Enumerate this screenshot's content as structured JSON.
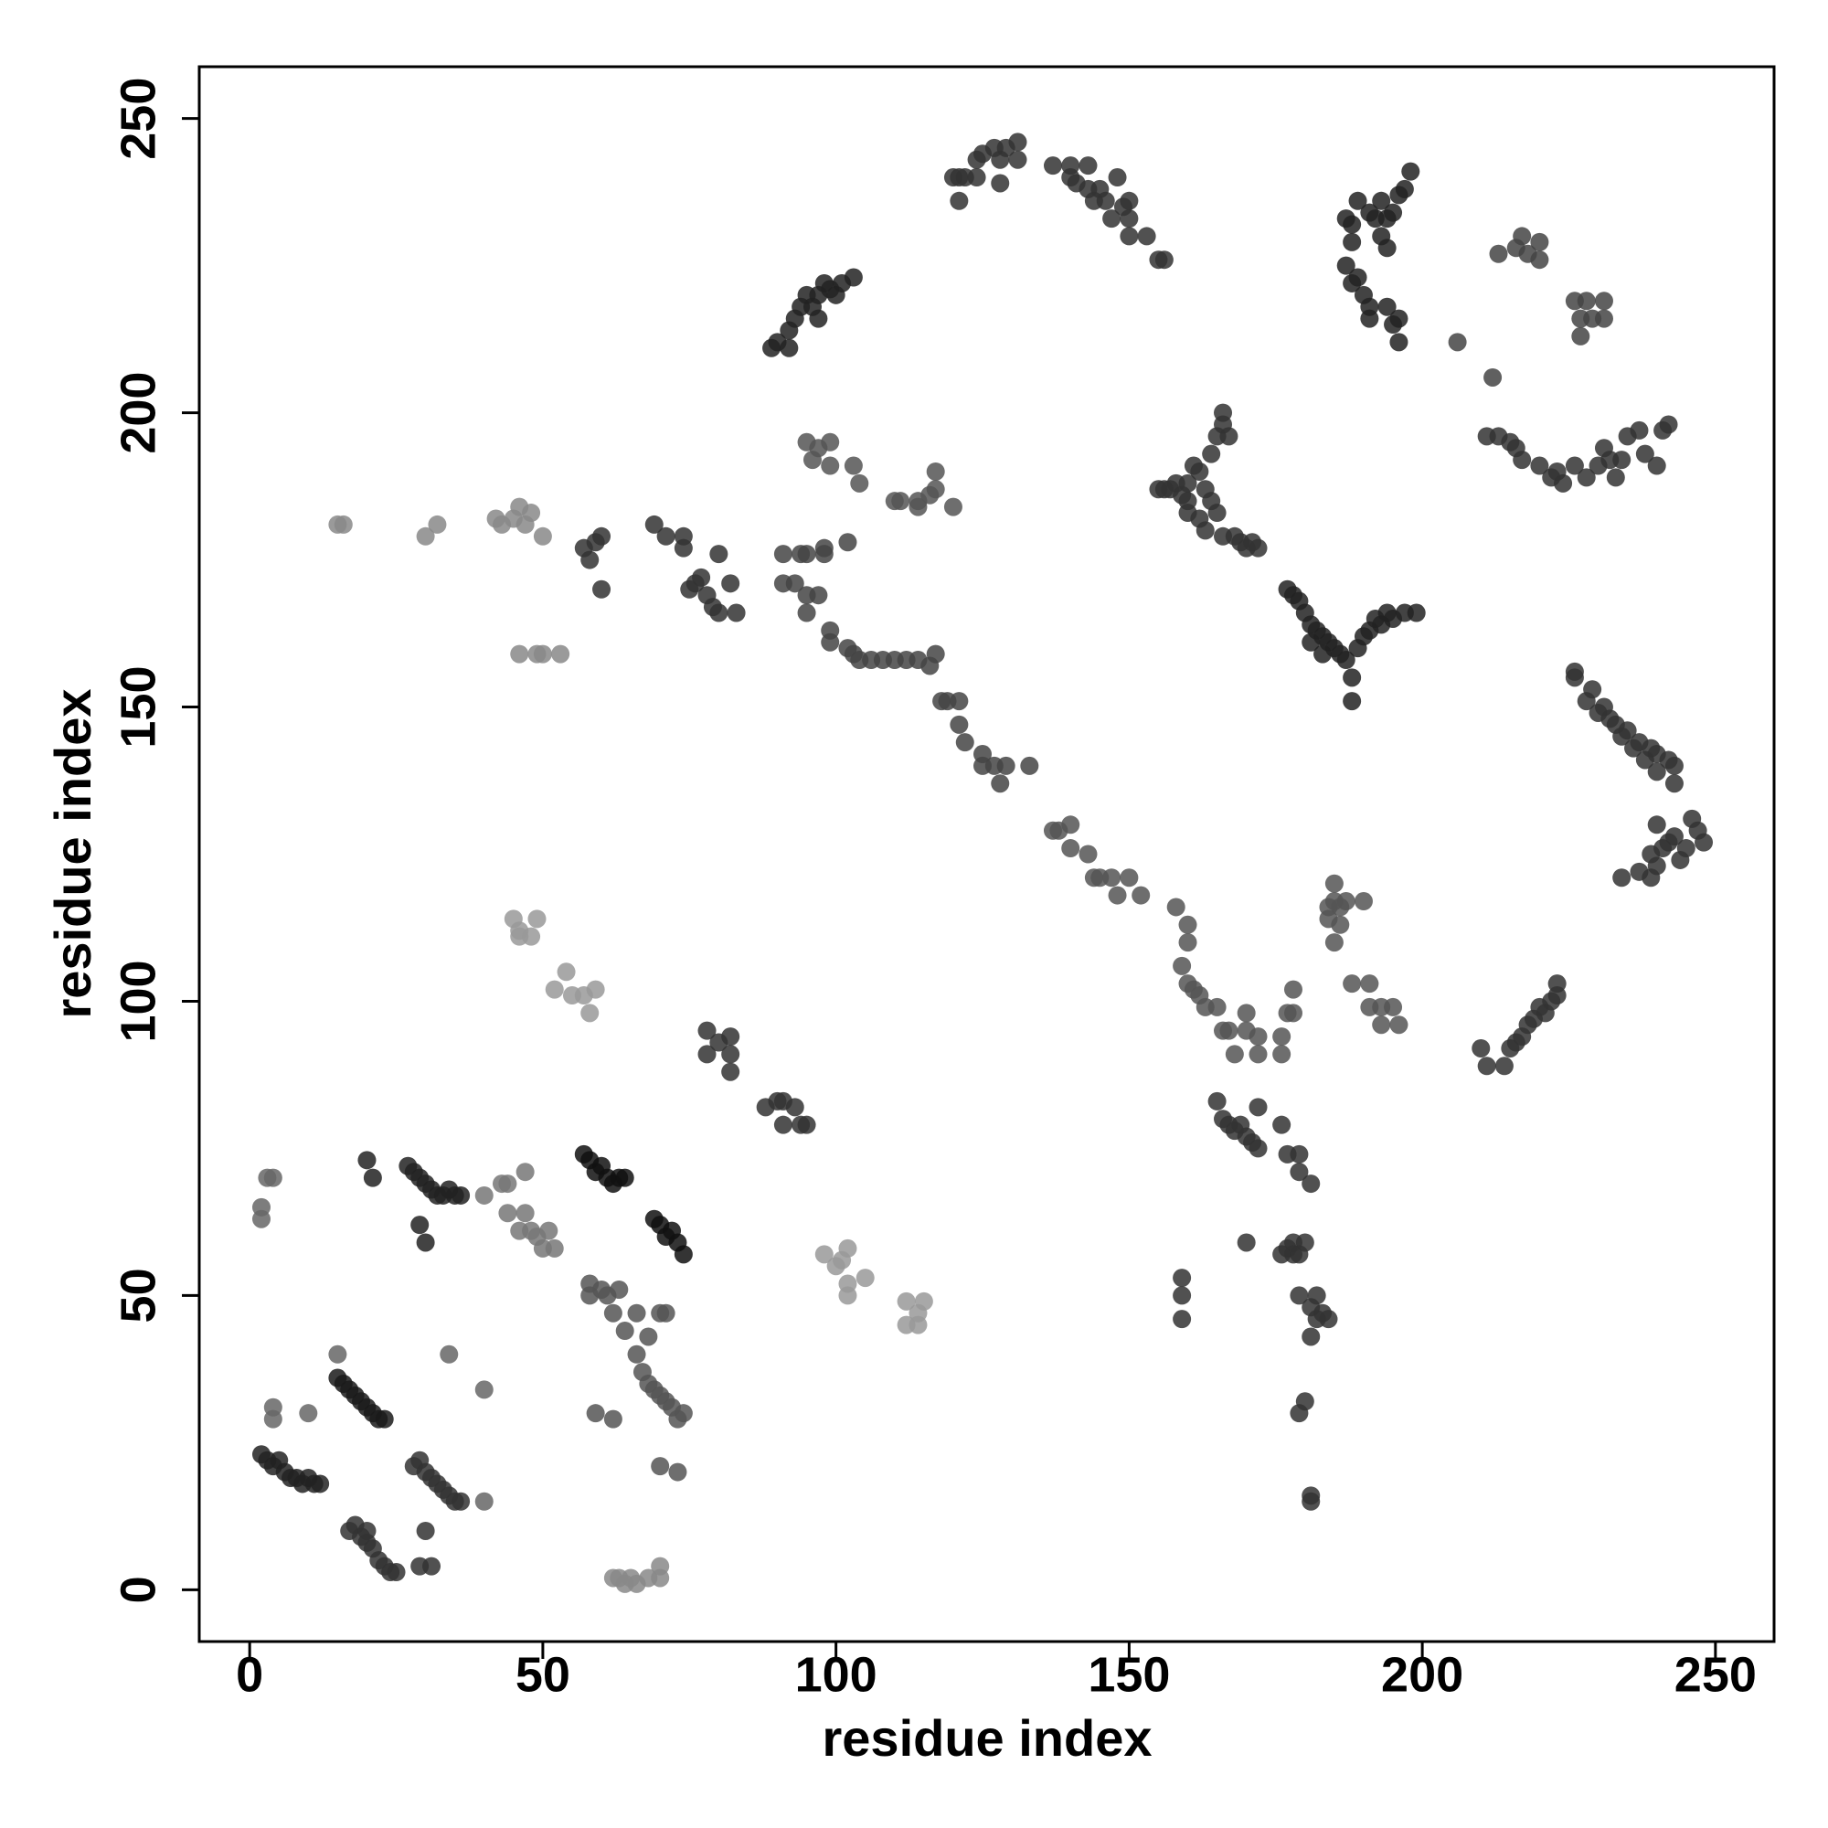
{
  "chart_data": {
    "type": "scatter",
    "xlabel": "residue index",
    "ylabel": "residue index",
    "xlim": [
      -8.6,
      260
    ],
    "ylim": [
      -8.8,
      258.8
    ],
    "xticks": [
      0,
      50,
      100,
      150,
      200,
      250
    ],
    "yticks": [
      0,
      50,
      100,
      150,
      200,
      250
    ],
    "series": [
      {
        "color": "#222222",
        "x": [
          2,
          3,
          4,
          5,
          6,
          7,
          8,
          9,
          10,
          11,
          12
        ],
        "values": [
          23,
          22,
          21,
          22,
          20,
          19,
          19,
          18,
          19,
          18,
          18
        ]
      },
      {
        "color": "#666666",
        "x": [
          2,
          2,
          3,
          4,
          4,
          4,
          10,
          15,
          34,
          40,
          40
        ],
        "values": [
          63,
          65,
          70,
          70,
          31,
          29,
          30,
          40,
          40,
          34,
          15
        ]
      },
      {
        "color": "#1a1a1a",
        "x": [
          15,
          16,
          17,
          18,
          19,
          20,
          21,
          22,
          23
        ],
        "values": [
          36,
          35,
          34,
          33,
          32,
          31,
          30,
          29,
          29
        ]
      },
      {
        "color": "#333333",
        "x": [
          17,
          18,
          19,
          20,
          21,
          22,
          23,
          24,
          25,
          20
        ],
        "values": [
          10,
          11,
          9,
          8,
          7,
          5,
          4,
          3,
          3,
          10
        ]
      },
      {
        "color": "#222222",
        "x": [
          20,
          21,
          27,
          28,
          29,
          30,
          31,
          32,
          33,
          34,
          35,
          36,
          29,
          30
        ],
        "values": [
          73,
          70,
          72,
          71,
          70,
          69,
          68,
          67,
          67,
          68,
          67,
          67,
          62,
          59
        ]
      },
      {
        "color": "#333333",
        "x": [
          28,
          29,
          30,
          31,
          32,
          33,
          34,
          35,
          36,
          30,
          29,
          31
        ],
        "values": [
          21,
          22,
          20,
          19,
          18,
          17,
          16,
          15,
          15,
          10,
          4,
          4
        ]
      },
      {
        "color": "#777777",
        "x": [
          40,
          43,
          44,
          44,
          46,
          47,
          48,
          49,
          50,
          51,
          52,
          47
        ],
        "values": [
          67,
          69,
          69,
          64,
          61,
          64,
          61,
          60,
          58,
          61,
          58,
          71
        ]
      },
      {
        "color": "#111111",
        "x": [
          57,
          58,
          59,
          60,
          61,
          62,
          63,
          64
        ],
        "values": [
          74,
          73,
          71,
          72,
          70,
          69,
          70,
          70
        ]
      },
      {
        "color": "#555555",
        "x": [
          58,
          58,
          60,
          61,
          62,
          63,
          64,
          66,
          66,
          67,
          68,
          69,
          70,
          71,
          72,
          73,
          74,
          68,
          70,
          71,
          59,
          62,
          70,
          73
        ],
        "values": [
          52,
          50,
          51,
          50,
          47,
          51,
          44,
          47,
          40,
          37,
          35,
          34,
          33,
          32,
          31,
          29,
          30,
          43,
          47,
          47,
          30,
          29,
          21,
          20
        ]
      },
      {
        "color": "#111111",
        "x": [
          69,
          70,
          71,
          72,
          73,
          74
        ],
        "values": [
          63,
          62,
          60,
          61,
          59,
          57
        ]
      },
      {
        "color": "#888888",
        "x": [
          62,
          63,
          64,
          65,
          66,
          68,
          70,
          70
        ],
        "values": [
          2,
          2,
          1,
          2,
          1,
          2,
          2,
          4
        ]
      },
      {
        "color": "#333333",
        "x": [
          78,
          78,
          80,
          82,
          82,
          82,
          88,
          90,
          91,
          91,
          93,
          94,
          95
        ],
        "values": [
          95,
          91,
          93,
          94,
          91,
          88,
          82,
          83,
          83,
          79,
          82,
          79,
          79
        ]
      },
      {
        "color": "#999999",
        "x": [
          98,
          100,
          101,
          102,
          102,
          102,
          105,
          112,
          112,
          114,
          114,
          115
        ],
        "values": [
          57,
          55,
          56,
          58,
          52,
          50,
          53,
          49,
          45,
          45,
          47,
          49
        ]
      },
      {
        "color": "#999999",
        "x": [
          45,
          46,
          46,
          48,
          49,
          52,
          54,
          55,
          57,
          58,
          59
        ],
        "values": [
          114,
          112,
          111,
          111,
          114,
          102,
          105,
          101,
          101,
          98,
          102
        ]
      },
      {
        "color": "#888888",
        "x": [
          15,
          16,
          30,
          32,
          42,
          43,
          45,
          46,
          47,
          48,
          50,
          46,
          49,
          50,
          53
        ],
        "values": [
          181,
          181,
          179,
          181,
          182,
          181,
          182,
          184,
          181,
          183,
          179,
          159,
          159,
          159,
          159
        ]
      },
      {
        "color": "#333333",
        "x": [
          57,
          58,
          59,
          60,
          60,
          69,
          71,
          74,
          74,
          75,
          76,
          77,
          78,
          79,
          80,
          80,
          82,
          83
        ],
        "values": [
          177,
          175,
          178,
          179,
          170,
          181,
          179,
          179,
          177,
          170,
          171,
          172,
          169,
          167,
          166,
          176,
          171,
          166
        ]
      },
      {
        "color": "#444444",
        "x": [
          91,
          91,
          93,
          94,
          95,
          95,
          95,
          97,
          98,
          98,
          99,
          99,
          102,
          102,
          103,
          104,
          106,
          108,
          110,
          112,
          114,
          116,
          117
        ],
        "values": [
          176,
          171,
          171,
          176,
          176,
          166,
          169,
          169,
          177,
          176,
          163,
          161,
          160,
          178,
          159,
          158,
          158,
          158,
          158,
          158,
          158,
          157,
          159
        ]
      },
      {
        "color": "#555555",
        "x": [
          95,
          96,
          97,
          99,
          99,
          103,
          104,
          110,
          111,
          114,
          114,
          116,
          117,
          117,
          120
        ],
        "values": [
          195,
          192,
          194,
          195,
          191,
          191,
          188,
          185,
          185,
          185,
          184,
          186,
          187,
          190,
          184
        ]
      },
      {
        "color": "#222222",
        "x": [
          89,
          90,
          92,
          93,
          94,
          95,
          96,
          97,
          98,
          99,
          100,
          101,
          103,
          92,
          97
        ],
        "values": [
          211,
          212,
          214,
          216,
          218,
          220,
          218,
          220,
          222,
          221,
          220,
          222,
          223,
          211,
          216
        ]
      },
      {
        "color": "#444444",
        "x": [
          118,
          119,
          121,
          121,
          122,
          125,
          125,
          127,
          128,
          129,
          133
        ],
        "values": [
          151,
          151,
          151,
          147,
          144,
          142,
          140,
          140,
          137,
          140,
          140
        ]
      },
      {
        "color": "#333333",
        "x": [
          120,
          121,
          121,
          122,
          124,
          124,
          125,
          127,
          128,
          128,
          129,
          131,
          131,
          137,
          140,
          140,
          141,
          143,
          143,
          144,
          145,
          146,
          147,
          148,
          149,
          150,
          150,
          150,
          153,
          155,
          156
        ],
        "values": [
          240,
          240,
          236,
          240,
          240,
          243,
          244,
          245,
          243,
          239,
          245,
          246,
          243,
          242,
          240,
          242,
          239,
          242,
          238,
          236,
          238,
          236,
          233,
          240,
          235,
          233,
          230,
          236,
          230,
          226,
          226
        ]
      },
      {
        "color": "#555555",
        "x": [
          137,
          138,
          140,
          140,
          143,
          144,
          145,
          147,
          148,
          150,
          152
        ],
        "values": [
          129,
          129,
          130,
          126,
          125,
          121,
          121,
          121,
          118,
          121,
          118
        ]
      },
      {
        "color": "#333333",
        "x": [
          155,
          156,
          157,
          158,
          159,
          160,
          160,
          161,
          162,
          163,
          164,
          165,
          166,
          166,
          167,
          160,
          162,
          163,
          164,
          165,
          166,
          168,
          169,
          170,
          171,
          172
        ],
        "values": [
          187,
          187,
          187,
          188,
          186,
          185,
          188,
          191,
          190,
          187,
          193,
          196,
          198,
          200,
          196,
          183,
          182,
          180,
          185,
          183,
          179,
          179,
          178,
          177,
          178,
          177
        ]
      },
      {
        "color": "#555555",
        "x": [
          158,
          160,
          160,
          159,
          160,
          161,
          162,
          163,
          165,
          166,
          167,
          168,
          170,
          170,
          172,
          172,
          176,
          177,
          178,
          176,
          178
        ],
        "values": [
          116,
          113,
          110,
          106,
          103,
          102,
          101,
          99,
          99,
          95,
          95,
          91,
          98,
          95,
          94,
          91,
          94,
          98,
          98,
          91,
          102
        ]
      },
      {
        "color": "#333333",
        "x": [
          165,
          166,
          167,
          168,
          169,
          170,
          171,
          172,
          172,
          176,
          177,
          179,
          179,
          181,
          170,
          176,
          177,
          178,
          178,
          179,
          180,
          179,
          181,
          182,
          181,
          183,
          184,
          182,
          180,
          179,
          181,
          181,
          159,
          159,
          159
        ],
        "values": [
          83,
          80,
          79,
          78,
          79,
          77,
          76,
          75,
          82,
          79,
          74,
          74,
          71,
          69,
          59,
          57,
          58,
          57,
          59,
          57,
          59,
          50,
          48,
          46,
          43,
          47,
          46,
          50,
          32,
          30,
          16,
          15,
          53,
          50,
          46
        ]
      },
      {
        "color": "#222222",
        "x": [
          177,
          178,
          179,
          180,
          181,
          182,
          183,
          184,
          185,
          186,
          187,
          188,
          188,
          189,
          190,
          191,
          192,
          193,
          194,
          195,
          197,
          199,
          181,
          183
        ],
        "values": [
          170,
          169,
          168,
          166,
          164,
          163,
          162,
          161,
          160,
          159,
          158,
          155,
          151,
          160,
          162,
          163,
          165,
          164,
          166,
          165,
          166,
          166,
          161,
          159
        ]
      },
      {
        "color": "#555555",
        "x": [
          184,
          185,
          186,
          187,
          186,
          185,
          190,
          188,
          191,
          191,
          193,
          195,
          196,
          193,
          184,
          185
        ],
        "values": [
          116,
          117,
          116,
          117,
          113,
          110,
          117,
          103,
          103,
          99,
          99,
          99,
          96,
          96,
          114,
          120
        ]
      },
      {
        "color": "#222222",
        "x": [
          187,
          188,
          188,
          189,
          191,
          192,
          193,
          194,
          195,
          196,
          197,
          198,
          193,
          194,
          187,
          188,
          189,
          190,
          191,
          191,
          194,
          195,
          196,
          196
        ],
        "values": [
          233,
          232,
          229,
          236,
          234,
          233,
          236,
          233,
          234,
          237,
          238,
          241,
          230,
          228,
          225,
          222,
          223,
          220,
          216,
          218,
          218,
          215,
          212,
          216
        ]
      },
      {
        "color": "#444444",
        "x": [
          206,
          212,
          213,
          216,
          217,
          218,
          220,
          220,
          226,
          227,
          228,
          229,
          231,
          231,
          227
        ],
        "values": [
          212,
          206,
          227,
          228,
          230,
          227,
          229,
          226,
          219,
          216,
          219,
          216,
          219,
          216,
          213
        ]
      },
      {
        "color": "#333333",
        "x": [
          211,
          213,
          215,
          216,
          217,
          220,
          222,
          223,
          224,
          226,
          228,
          230,
          231,
          232,
          233,
          234,
          235,
          237,
          238,
          240,
          241,
          242
        ],
        "values": [
          196,
          196,
          195,
          194,
          192,
          191,
          189,
          190,
          188,
          191,
          189,
          191,
          194,
          192,
          189,
          192,
          196,
          197,
          193,
          191,
          197,
          198
        ]
      },
      {
        "color": "#333333",
        "x": [
          210,
          211,
          214,
          215,
          216,
          217,
          218,
          219,
          220,
          221,
          222,
          223,
          223
        ],
        "values": [
          92,
          89,
          89,
          92,
          93,
          94,
          96,
          97,
          99,
          98,
          100,
          101,
          103
        ]
      },
      {
        "color": "#333333",
        "x": [
          226,
          226,
          228,
          229,
          230,
          231,
          232,
          233,
          234,
          235,
          236,
          237,
          238,
          239,
          240,
          240,
          242,
          243,
          243,
          234,
          237,
          239,
          239,
          240,
          241,
          242,
          243,
          244,
          245,
          246,
          247,
          248,
          240
        ],
        "values": [
          156,
          155,
          151,
          153,
          149,
          150,
          148,
          147,
          145,
          146,
          143,
          144,
          141,
          143,
          142,
          139,
          141,
          137,
          140,
          121,
          122,
          125,
          121,
          123,
          126,
          127,
          128,
          124,
          126,
          131,
          129,
          127,
          130
        ]
      }
    ]
  }
}
